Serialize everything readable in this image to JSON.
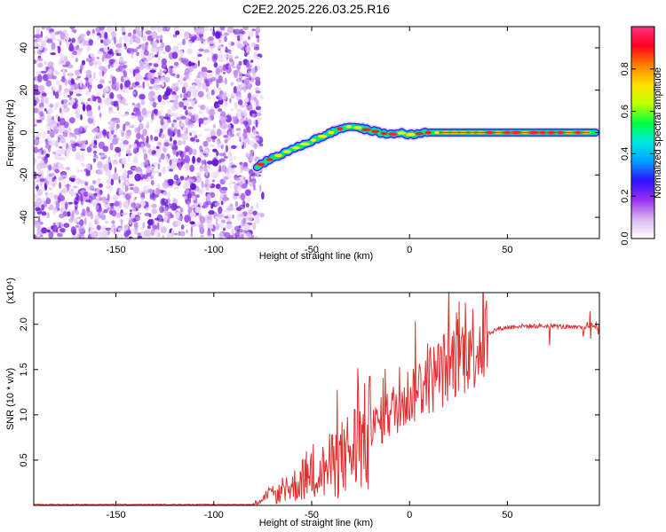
{
  "title": "C2E2.2025.226.03.25.R16",
  "chart_data": [
    {
      "type": "heatmap",
      "name": "spectrogram",
      "xlabel": "Height of straight line (km)",
      "ylabel": "Frequency (Hz)",
      "xlim": [
        -192,
        97
      ],
      "ylim": [
        -50,
        50
      ],
      "xticks": [
        -150,
        -100,
        -50,
        0,
        50
      ],
      "xtick_labels": [
        "-150",
        "-100",
        "-50",
        "0",
        "50"
      ],
      "yticks": [
        -40,
        -20,
        0,
        20,
        40
      ],
      "ytick_labels": [
        "-40",
        "-20",
        "0",
        "20",
        "40"
      ],
      "noise_region_x": [
        -192,
        -77
      ],
      "ridge": {
        "x": [
          -78,
          -70,
          -60,
          -50,
          -45,
          -40,
          -35,
          -30,
          -25,
          -20,
          -15,
          -10,
          -5,
          0,
          10,
          20,
          40,
          60,
          80,
          95
        ],
        "y": [
          -16,
          -12,
          -8,
          -4,
          -2,
          0,
          2,
          3,
          2,
          1,
          0,
          -1,
          0,
          -1,
          0,
          0,
          0,
          0,
          0,
          0
        ]
      },
      "colorbar": {
        "label": "Normalized spectral amplitude",
        "range": [
          0,
          1
        ],
        "ticks": [
          0.0,
          0.2,
          0.4,
          0.6,
          0.8
        ],
        "tick_labels": [
          "0.0",
          "0.2",
          "0.4",
          "0.6",
          "0.8"
        ],
        "colors": [
          "#ffffff",
          "#d8b8f0",
          "#9b30f0",
          "#3010ff",
          "#00a0ff",
          "#00e8e0",
          "#00ff40",
          "#c0ff00",
          "#ffe000",
          "#ff8000",
          "#ff0020",
          "#ff3080"
        ]
      },
      "grid": false
    },
    {
      "type": "line",
      "name": "snr",
      "xlabel": "Height of straight line (km)",
      "ylabel": "SNR (10 * v/v)",
      "exponent_label": "(x10⁴)",
      "xlim": [
        -192,
        97
      ],
      "ylim": [
        0,
        23500
      ],
      "xticks": [
        -150,
        -100,
        -50,
        0,
        50
      ],
      "xtick_labels": [
        "-150",
        "-100",
        "-50",
        "0",
        "50"
      ],
      "yticks": [
        5000,
        10000,
        15000,
        20000
      ],
      "ytick_labels": [
        "0.5",
        "1.0",
        "1.5",
        "2.0"
      ],
      "line_color": "#e03030",
      "envelope": {
        "x": [
          -192,
          -80,
          -75,
          -65,
          -55,
          -45,
          -35,
          -25,
          -15,
          -5,
          5,
          15,
          25,
          35,
          45,
          55,
          65,
          75,
          85,
          92,
          97
        ],
        "y": [
          100,
          100,
          1000,
          1500,
          3000,
          4000,
          5500,
          7500,
          9500,
          11500,
          13500,
          15000,
          17000,
          18500,
          19500,
          19800,
          19800,
          19800,
          19600,
          19800,
          19800
        ]
      },
      "grid": false
    }
  ]
}
